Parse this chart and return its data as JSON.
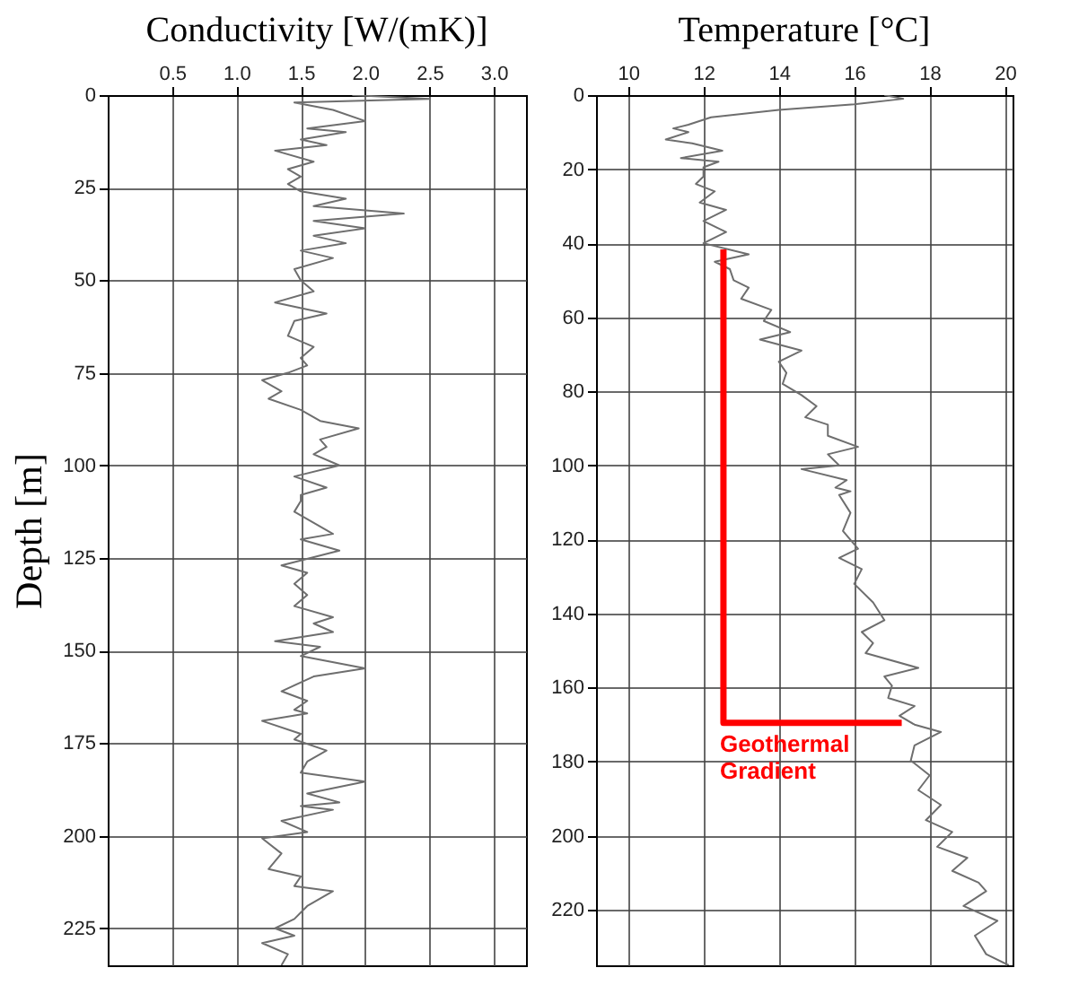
{
  "chart_data": [
    {
      "type": "line",
      "title": "Conductivity [W/(mK)]",
      "ylabel": "Depth [m]",
      "grid": true,
      "xlim": [
        0,
        3.25
      ],
      "xticks": [
        {
          "value": 0.5,
          "label": "0.5"
        },
        {
          "value": 1.0,
          "label": "1.0"
        },
        {
          "value": 1.5,
          "label": "1.5"
        },
        {
          "value": 2.0,
          "label": "2.0"
        },
        {
          "value": 2.5,
          "label": "2.5"
        },
        {
          "value": 3.0,
          "label": "3.0"
        }
      ],
      "ylim": [
        235,
        0
      ],
      "yticks": [
        0,
        25,
        50,
        75,
        100,
        125,
        150,
        175,
        200,
        225
      ],
      "series": [
        {
          "color": "#6e6e6e",
          "x": [
            1.9,
            2.5,
            1.45,
            1.75,
            2.0,
            1.55,
            1.85,
            1.5,
            1.7,
            1.3,
            1.6,
            1.4,
            1.5,
            1.4,
            1.5,
            1.85,
            1.6,
            2.3,
            1.6,
            2.0,
            1.6,
            1.85,
            1.5,
            1.75,
            1.45,
            1.5,
            1.6,
            1.3,
            1.7,
            1.45,
            1.4,
            1.6,
            1.5,
            1.55,
            1.4,
            1.2,
            1.35,
            1.25,
            1.5,
            1.65,
            1.95,
            1.65,
            1.7,
            1.6,
            1.8,
            1.45,
            1.7,
            1.5,
            1.5,
            1.45,
            1.75,
            1.5,
            1.8,
            1.35,
            1.55,
            1.45,
            1.55,
            1.45,
            1.75,
            1.6,
            1.75,
            1.3,
            1.65,
            1.5,
            2.0,
            1.6,
            1.35,
            1.55,
            1.45,
            1.55,
            1.2,
            1.5,
            1.45,
            1.7,
            1.55,
            1.5,
            2.0,
            1.55,
            1.8,
            1.5,
            1.75,
            1.35,
            1.55,
            1.2,
            1.35,
            1.25,
            1.5,
            1.45,
            1.75,
            1.55,
            1.45,
            1.3,
            1.45,
            1.2,
            1.4,
            1.35
          ],
          "values": [
            0,
            1,
            2,
            4,
            7,
            9,
            10,
            12,
            13.5,
            15,
            18,
            20,
            22,
            24,
            26,
            28,
            30,
            32,
            34,
            36,
            38,
            40,
            42,
            44,
            47,
            50,
            53,
            56,
            59,
            61,
            65,
            68,
            71,
            73,
            75,
            77,
            80,
            82,
            85,
            88,
            90,
            93,
            95,
            97,
            100,
            103,
            106,
            108,
            109.6,
            112.5,
            118.5,
            120,
            123,
            127,
            129,
            132,
            135,
            138,
            141,
            142.7,
            145,
            147.5,
            149,
            151.5,
            154.8,
            157,
            161,
            163.6,
            166,
            167,
            169,
            172.5,
            174,
            177,
            180,
            183,
            185.4,
            188.6,
            191,
            192,
            193,
            196,
            199,
            200.7,
            204.8,
            209,
            211,
            213.6,
            215,
            219,
            222.5,
            225,
            227,
            229,
            232,
            235
          ]
        }
      ]
    },
    {
      "type": "line",
      "title": "Temperature [°C]",
      "grid": true,
      "xlim": [
        9.15,
        20.2
      ],
      "xticks": [
        10,
        12,
        14,
        16,
        18,
        20
      ],
      "ylim": [
        235,
        0
      ],
      "yticks": [
        0,
        20,
        40,
        60,
        80,
        100,
        120,
        140,
        160,
        180,
        200,
        220
      ],
      "series": [
        {
          "color": "#6e6e6e",
          "x": [
            16.8,
            17.3,
            16.0,
            14.0,
            12.2,
            11.6,
            11.2,
            11.6,
            11.0,
            11.7,
            12.5,
            11.4,
            12.4,
            12.0,
            12.0,
            11.8,
            12.3,
            11.9,
            12.6,
            12.0,
            12.6,
            12.0,
            13.2,
            12.3,
            12.7,
            12.8,
            13.2,
            13.0,
            13.8,
            13.6,
            14.3,
            13.5,
            14.6,
            14.0,
            14.2,
            14.1,
            14.6,
            15.0,
            14.7,
            15.3,
            15.3,
            16.1,
            15.3,
            15.6,
            14.6,
            15.8,
            15.5,
            15.9,
            15.6,
            15.9,
            15.7,
            16.1,
            15.6,
            16.2,
            16.0,
            16.5,
            16.8,
            16.2,
            16.5,
            16.3,
            17.7,
            16.8,
            17.0,
            16.9,
            17.6,
            17.2,
            17.6,
            18.3,
            17.6,
            17.5,
            18.0,
            17.7,
            18.3,
            17.9,
            18.6,
            18.2,
            19.0,
            18.6,
            19.3,
            19.5,
            18.9,
            19.8,
            19.2,
            19.5,
            20.1
          ],
          "values": [
            0,
            1,
            2.5,
            4,
            6,
            8,
            9,
            10,
            12,
            13,
            15,
            17,
            18,
            19.5,
            22,
            24,
            26,
            29,
            31,
            34,
            37,
            40,
            43,
            45,
            47,
            50,
            52,
            55,
            58,
            61,
            64,
            66,
            69,
            72,
            75,
            78,
            81,
            84,
            87,
            89,
            92,
            95,
            97,
            100,
            101,
            104,
            106,
            107,
            108,
            112.8,
            117.7,
            122.5,
            125,
            128,
            132,
            137,
            141.8,
            145,
            148,
            150.7,
            154.7,
            157,
            159.5,
            162.8,
            165,
            167.6,
            170,
            172,
            175.6,
            179.7,
            183.7,
            187.7,
            191.7,
            195.8,
            199,
            203,
            206,
            209.5,
            212.7,
            215,
            219,
            223,
            227,
            232,
            235
          ]
        },
        {
          "color": "#ff0000",
          "x": [
            12.53,
            12.53,
            17.26
          ],
          "values": [
            41.7,
            169.5,
            169.5
          ]
        }
      ],
      "annotations": [
        {
          "text": "Geothermal Gradient",
          "x": 12.53,
          "y": 169.5
        }
      ]
    }
  ]
}
